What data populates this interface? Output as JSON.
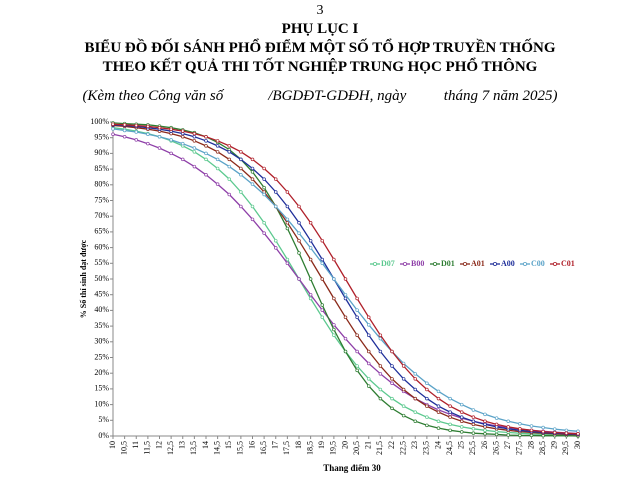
{
  "page_number": "3",
  "header": {
    "title": "PHỤ LỤC I",
    "line1": "BIỂU ĐỒ ĐỐI SÁNH PHỔ ĐIỂM MỘT SỐ TỔ HỢP TRUYỀN THỐNG",
    "line2": "THEO KẾT QUẢ THI TỐT NGHIỆP TRUNG HỌC PHỔ THÔNG",
    "subtitle": "(Kèm theo Công văn số            /BGDĐT-GDĐH, ngày          tháng 7 năm 2025)"
  },
  "chart_data": {
    "type": "line",
    "x_label": "Thang điểm 30",
    "y_label": "% Số thí sinh đạt được",
    "legend": "right",
    "grid": false,
    "categories": [
      "10",
      "10,5",
      "11",
      "11,5",
      "12",
      "12,5",
      "13",
      "13,5",
      "14",
      "14,5",
      "15",
      "15,5",
      "16",
      "16,5",
      "17",
      "17,5",
      "18",
      "18,5",
      "19",
      "19,5",
      "20",
      "20,5",
      "21",
      "21,5",
      "22",
      "22,5",
      "23",
      "23,5",
      "24",
      "24,5",
      "25",
      "25,5",
      "26",
      "26,5",
      "27",
      "27,5",
      "28",
      "28,5",
      "29",
      "29,5",
      "30"
    ],
    "ylim": [
      0,
      100
    ],
    "yticks": [
      {
        "value": 0,
        "label": "0%"
      },
      {
        "value": 5,
        "label": "5%"
      },
      {
        "value": 10,
        "label": "10%"
      },
      {
        "value": 15,
        "label": "15%"
      },
      {
        "value": 20,
        "label": "20%"
      },
      {
        "value": 25,
        "label": "25%"
      },
      {
        "value": 30,
        "label": "30%"
      },
      {
        "value": 35,
        "label": "35%"
      },
      {
        "value": 40,
        "label": "40%"
      },
      {
        "value": 45,
        "label": "45%"
      },
      {
        "value": 50,
        "label": "50%"
      },
      {
        "value": 55,
        "label": "55%"
      },
      {
        "value": 60,
        "label": "60%"
      },
      {
        "value": 65,
        "label": "65%"
      },
      {
        "value": 70,
        "label": "70%"
      },
      {
        "value": 75,
        "label": "75%"
      },
      {
        "value": 80,
        "label": "80%"
      },
      {
        "value": 85,
        "label": "85%"
      },
      {
        "value": 90,
        "label": "90%"
      },
      {
        "value": 95,
        "label": "95%"
      },
      {
        "value": 100,
        "label": "100%"
      }
    ],
    "series": [
      {
        "name": "D07",
        "color": "#5cc98f",
        "values": [
          98.2,
          97.7,
          97.1,
          96.3,
          95.3,
          94.0,
          92.4,
          90.5,
          88.1,
          85.2,
          81.8,
          77.7,
          73.1,
          67.9,
          62.2,
          56.2,
          50,
          43.8,
          37.8,
          32.1,
          26.9,
          22.3,
          18.2,
          14.8,
          11.9,
          9.5,
          7.6,
          6.0,
          4.7,
          3.7,
          2.9,
          2.3,
          1.8,
          1.4,
          1.1,
          0.9,
          0.7,
          0.5,
          0.4,
          0.3,
          0.2
        ]
      },
      {
        "name": "B00",
        "color": "#8e3fa8",
        "values": [
          96.1,
          95.3,
          94.3,
          93.1,
          91.7,
          90.0,
          88.1,
          85.8,
          83.2,
          80.2,
          76.9,
          73.1,
          69.0,
          64.6,
          59.9,
          55.0,
          50,
          45.0,
          40.1,
          35.4,
          31.0,
          26.9,
          23.1,
          19.8,
          16.8,
          14.2,
          11.9,
          10.0,
          8.3,
          6.9,
          5.7,
          4.7,
          3.9,
          3.2,
          2.7,
          2.2,
          1.8,
          1.5,
          1.2,
          1.0,
          0.8
        ]
      },
      {
        "name": "D01",
        "color": "#2e7d32",
        "values": [
          99.7,
          99.5,
          99.3,
          99.1,
          98.7,
          98.2,
          97.5,
          96.6,
          95.3,
          93.5,
          91.2,
          88.1,
          84.1,
          79.1,
          73.1,
          66.1,
          58.3,
          50,
          41.7,
          33.9,
          26.9,
          20.9,
          15.9,
          11.9,
          8.8,
          6.5,
          4.7,
          3.4,
          2.5,
          1.8,
          1.3,
          0.9,
          0.7,
          0.5,
          0.3,
          0.2,
          0.2,
          0.1,
          0.1,
          0.1,
          0
        ]
      },
      {
        "name": "A01",
        "color": "#8b2a1a",
        "values": [
          98.9,
          98.6,
          98.2,
          97.7,
          97.1,
          96.3,
          95.3,
          94.0,
          92.4,
          90.5,
          88.1,
          85.2,
          81.8,
          77.7,
          73.1,
          67.9,
          62.2,
          56.2,
          50,
          43.8,
          37.8,
          32.1,
          26.9,
          22.3,
          18.2,
          14.8,
          11.9,
          9.5,
          7.6,
          6.0,
          4.7,
          3.7,
          2.9,
          2.3,
          1.8,
          1.4,
          1.1,
          0.9,
          0.7,
          0.5,
          0.4
        ]
      },
      {
        "name": "A00",
        "color": "#1f2f9a",
        "values": [
          99.1,
          98.9,
          98.6,
          98.2,
          97.7,
          97.1,
          96.3,
          95.3,
          94.0,
          92.4,
          90.5,
          88.1,
          85.2,
          81.8,
          77.7,
          73.1,
          67.9,
          62.2,
          56.2,
          50,
          43.8,
          37.8,
          32.1,
          26.9,
          22.3,
          18.2,
          14.8,
          11.9,
          9.5,
          7.6,
          6.0,
          4.7,
          3.7,
          2.9,
          2.3,
          1.8,
          1.4,
          1.1,
          0.9,
          0.7,
          0.5
        ]
      },
      {
        "name": "C00",
        "color": "#5ba3c8",
        "values": [
          97.8,
          97.3,
          96.8,
          96.1,
          95.3,
          94.3,
          93.1,
          91.7,
          90.0,
          88.1,
          85.8,
          83.2,
          80.2,
          76.9,
          73.1,
          69.0,
          64.6,
          59.9,
          55.0,
          50,
          45.0,
          40.1,
          35.4,
          31.0,
          26.9,
          23.1,
          19.8,
          16.8,
          14.2,
          11.9,
          10.0,
          8.3,
          6.9,
          5.7,
          4.7,
          3.9,
          3.2,
          2.7,
          2.2,
          1.8,
          1.5
        ]
      },
      {
        "name": "C01",
        "color": "#b0202a",
        "values": [
          99.3,
          99.1,
          98.9,
          98.6,
          98.2,
          97.7,
          97.1,
          96.3,
          95.3,
          94.0,
          92.4,
          90.5,
          88.1,
          85.2,
          81.8,
          77.7,
          73.1,
          67.9,
          62.2,
          56.2,
          50,
          43.8,
          37.8,
          32.1,
          26.9,
          22.3,
          18.2,
          14.8,
          11.9,
          9.5,
          7.6,
          6.0,
          4.7,
          3.7,
          2.9,
          2.3,
          1.8,
          1.4,
          1.1,
          0.9,
          0.7
        ]
      }
    ]
  }
}
